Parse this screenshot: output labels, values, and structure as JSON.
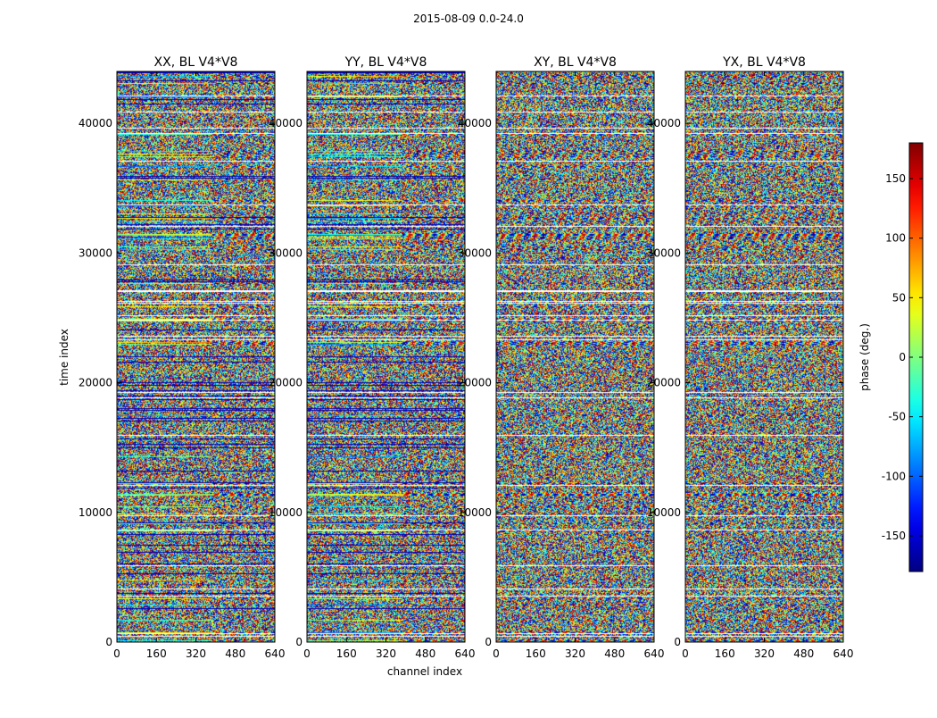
{
  "chart_data": {
    "type": "heatmap",
    "title": "2015-08-09 0.0-24.0",
    "xlabel": "channel index",
    "ylabel": "time index",
    "xlim": [
      0,
      640
    ],
    "ylim": [
      0,
      44000
    ],
    "xticks": [
      0,
      160,
      320,
      480,
      640
    ],
    "yticks": [
      0,
      10000,
      20000,
      30000,
      40000
    ],
    "panels": [
      {
        "title": "XX, BL V4*V8"
      },
      {
        "title": "YY, BL V4*V8"
      },
      {
        "title": "XY, BL V4*V8"
      },
      {
        "title": "YX, BL V4*V8"
      }
    ],
    "colorbar": {
      "label": "phase (deg.)",
      "range": [
        -180,
        180
      ],
      "ticks": [
        150,
        100,
        50,
        0,
        -50,
        -100,
        -150
      ],
      "colormap": "jet"
    }
  }
}
